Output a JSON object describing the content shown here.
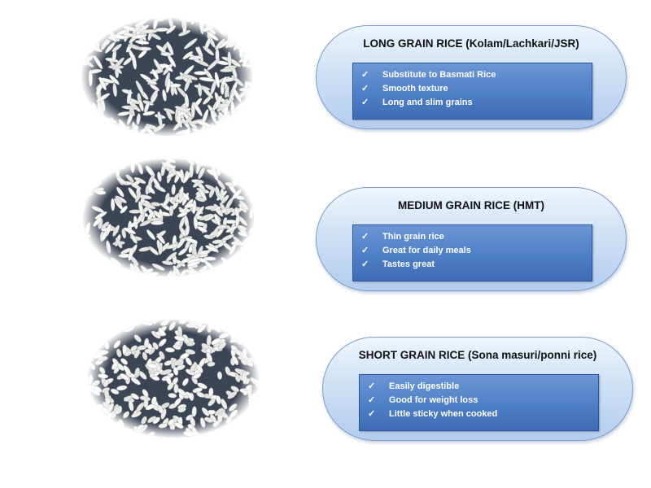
{
  "colors": {
    "card_border": "#7c9cc9",
    "feature_box": "#4f7fc6",
    "text": "#111111"
  },
  "rice_types": [
    {
      "title": "LONG GRAIN RICE  (Kolam/Lachkari/JSR)",
      "photo_icon": "long-grain-rice-photo",
      "features": [
        "Substitute to Basmati Rice",
        "Smooth texture",
        "Long and slim grains"
      ]
    },
    {
      "title": "MEDIUM GRAIN RICE (HMT)",
      "photo_icon": "medium-grain-rice-photo",
      "features": [
        "Thin grain rice",
        "Great for daily meals",
        "Tastes great"
      ]
    },
    {
      "title": "SHORT GRAIN RICE (Sona masuri/ponni rice)",
      "photo_icon": "short-grain-rice-photo",
      "features": [
        "Easily digestible",
        "Good for weight loss",
        "Little sticky when cooked"
      ]
    }
  ]
}
